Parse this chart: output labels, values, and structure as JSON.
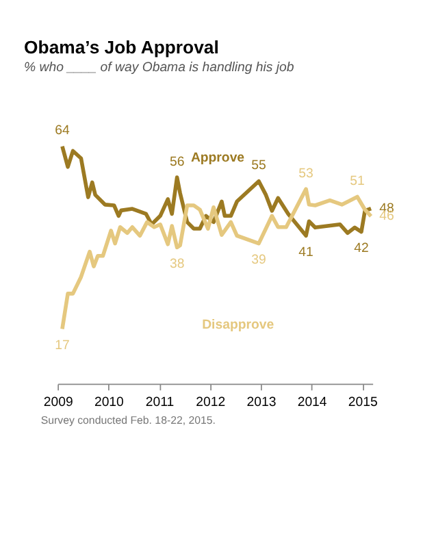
{
  "chart_data": {
    "type": "line",
    "title": "Obama’s Job Approval",
    "subtitle": "% who ____ of way Obama is handling his job",
    "x": [
      2009.09,
      2009.2,
      2009.3,
      2009.46,
      2009.6,
      2009.68,
      2009.74,
      2009.93,
      2010.11,
      2010.2,
      2010.25,
      2010.47,
      2010.74,
      2010.85,
      2011.02,
      2011.17,
      2011.25,
      2011.35,
      2011.41,
      2011.55,
      2011.68,
      2011.8,
      2011.92,
      2012.07,
      2012.23,
      2012.29,
      2012.41,
      2012.53,
      2012.96,
      2013.1,
      2013.22,
      2013.34,
      2013.54,
      2013.89,
      2013.95,
      2014.07,
      2014.56,
      2014.71,
      2014.85,
      2014.98,
      2015.05,
      2015.17
    ],
    "series": [
      {
        "name": "Approve",
        "color": "#9c7a22",
        "values": [
          64,
          58.7,
          62.8,
          60.9,
          50.9,
          54.7,
          51.5,
          49,
          48.8,
          46.1,
          47.5,
          47.9,
          46.6,
          43.9,
          46.1,
          50.4,
          46.6,
          56,
          52,
          44.5,
          42.8,
          42.8,
          46.1,
          44.5,
          49.8,
          46.1,
          46.1,
          49.8,
          55,
          51.5,
          47.4,
          50.7,
          46.6,
          41,
          44.7,
          43.1,
          43.9,
          41.7,
          43.1,
          42,
          47.4,
          48
        ],
        "value_labels": [
          "64",
          null,
          null,
          null,
          null,
          null,
          null,
          null,
          null,
          null,
          null,
          null,
          null,
          null,
          null,
          null,
          null,
          "56",
          null,
          null,
          null,
          null,
          null,
          null,
          null,
          null,
          null,
          null,
          "55",
          null,
          null,
          null,
          null,
          "41",
          null,
          null,
          null,
          null,
          null,
          "42",
          null,
          "48"
        ]
      },
      {
        "name": "Disapprove",
        "color": "#e5c87f",
        "x": [
          2009.09,
          2009.2,
          2009.3,
          2009.46,
          2009.63,
          2009.71,
          2009.79,
          2009.89,
          2010.05,
          2010.13,
          2010.23,
          2010.37,
          2010.47,
          2010.62,
          2010.76,
          2010.9,
          2011.02,
          2011.17,
          2011.25,
          2011.35,
          2011.41,
          2011.55,
          2011.68,
          2011.8,
          2011.96,
          2012.07,
          2012.23,
          2012.41,
          2012.53,
          2012.96,
          2013.22,
          2013.34,
          2013.5,
          2013.89,
          2013.95,
          2014.07,
          2014.36,
          2014.6,
          2014.9,
          2015.05,
          2015.17
        ],
        "values": [
          17,
          26.1,
          26.1,
          30.4,
          36.9,
          33.1,
          35.8,
          35.8,
          42.3,
          39,
          43.2,
          41.7,
          43.2,
          41,
          44.5,
          43.2,
          43.9,
          38.8,
          43.5,
          38,
          38.5,
          48.8,
          48.8,
          47.7,
          42.8,
          48.3,
          41.2,
          44.5,
          41,
          39,
          46.1,
          43.2,
          43.2,
          53,
          49,
          48.8,
          50.1,
          49,
          51,
          47.7,
          46
        ],
        "value_labels": [
          "17",
          null,
          null,
          null,
          null,
          null,
          null,
          null,
          null,
          null,
          null,
          null,
          null,
          null,
          null,
          null,
          null,
          null,
          null,
          "38",
          null,
          null,
          null,
          null,
          null,
          null,
          null,
          null,
          null,
          "39",
          null,
          null,
          null,
          "53",
          null,
          null,
          null,
          null,
          "51",
          null,
          "46"
        ]
      }
    ],
    "xlim": [
      2009,
      2015.2
    ],
    "xticks": [
      2009,
      2010,
      2011,
      2012,
      2013,
      2014,
      2015
    ],
    "tick_labels": "x",
    "grid": false,
    "marker": "none",
    "line_style": "solid",
    "annotations": [
      "Survey conducted Feb. 18-22, 2015."
    ]
  }
}
